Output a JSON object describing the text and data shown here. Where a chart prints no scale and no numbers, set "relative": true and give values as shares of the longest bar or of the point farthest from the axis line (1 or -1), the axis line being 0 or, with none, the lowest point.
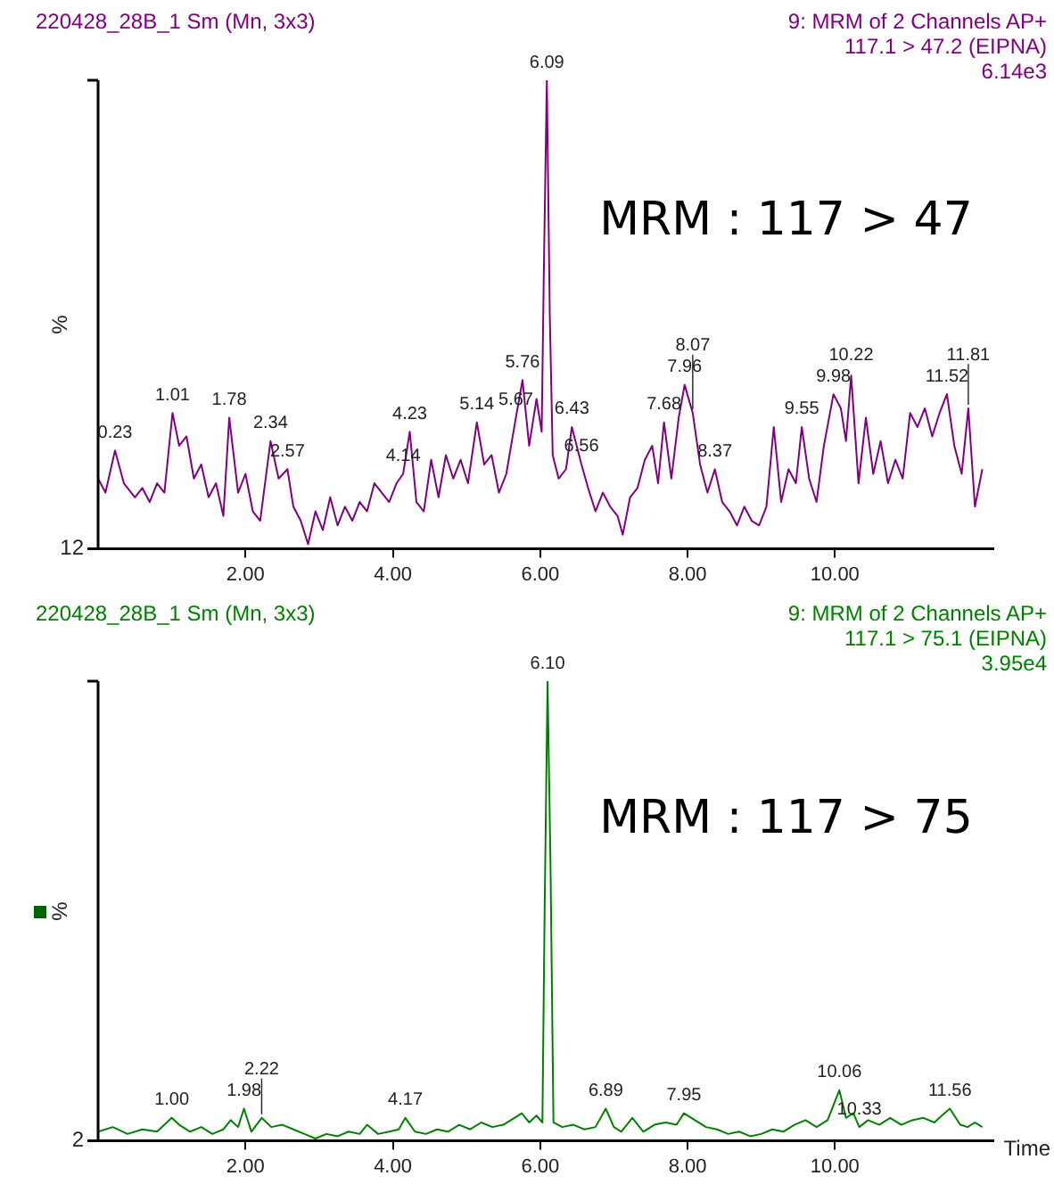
{
  "chart_data": [
    {
      "type": "line",
      "title": "220428_28B_1 Sm (Mn, 3x3)",
      "subtitle": "9: MRM of 2 Channels AP+\n117.1 > 47.2 (EIPNA)\n6.14e3",
      "ylabel": "%",
      "relative": true,
      "color": "#800080",
      "xlim": [
        0,
        12.15
      ],
      "xticks": [
        {
          "value": 2,
          "label": "2.00"
        },
        {
          "value": 4,
          "label": "4.00"
        },
        {
          "value": 6,
          "label": "6.00"
        },
        {
          "value": 8,
          "label": "8.00"
        },
        {
          "value": 10,
          "label": "10.00"
        }
      ],
      "x": [
        0,
        0.1,
        0.23,
        0.35,
        0.5,
        0.6,
        0.7,
        0.8,
        0.9,
        1.01,
        1.1,
        1.2,
        1.3,
        1.4,
        1.5,
        1.6,
        1.7,
        1.78,
        1.9,
        2.0,
        2.1,
        2.2,
        2.34,
        2.45,
        2.57,
        2.65,
        2.75,
        2.85,
        2.95,
        3.05,
        3.15,
        3.25,
        3.35,
        3.45,
        3.55,
        3.65,
        3.75,
        3.85,
        3.95,
        4.05,
        4.14,
        4.23,
        4.32,
        4.42,
        4.52,
        4.62,
        4.72,
        4.82,
        4.92,
        5.02,
        5.14,
        5.24,
        5.34,
        5.44,
        5.54,
        5.67,
        5.76,
        5.85,
        5.95,
        6.02,
        6.05,
        6.09,
        6.13,
        6.17,
        6.25,
        6.35,
        6.43,
        6.56,
        6.65,
        6.75,
        6.85,
        6.95,
        7.05,
        7.12,
        7.22,
        7.32,
        7.42,
        7.52,
        7.6,
        7.68,
        7.78,
        7.88,
        7.96,
        8.07,
        8.17,
        8.27,
        8.37,
        8.47,
        8.57,
        8.67,
        8.77,
        8.87,
        8.97,
        9.07,
        9.17,
        9.27,
        9.37,
        9.47,
        9.55,
        9.65,
        9.75,
        9.85,
        9.98,
        10.08,
        10.15,
        10.22,
        10.32,
        10.42,
        10.52,
        10.62,
        10.72,
        10.82,
        10.92,
        11.02,
        11.12,
        11.22,
        11.32,
        11.42,
        11.52,
        11.62,
        11.72,
        11.81,
        11.9,
        12.0
      ],
      "values": [
        0.15,
        0.12,
        0.21,
        0.14,
        0.11,
        0.13,
        0.1,
        0.14,
        0.12,
        0.29,
        0.22,
        0.24,
        0.15,
        0.18,
        0.11,
        0.14,
        0.07,
        0.28,
        0.12,
        0.16,
        0.08,
        0.06,
        0.23,
        0.15,
        0.17,
        0.09,
        0.06,
        0.01,
        0.08,
        0.04,
        0.11,
        0.05,
        0.09,
        0.06,
        0.1,
        0.08,
        0.14,
        0.12,
        0.1,
        0.14,
        0.16,
        0.25,
        0.1,
        0.08,
        0.19,
        0.11,
        0.2,
        0.15,
        0.19,
        0.14,
        0.27,
        0.18,
        0.2,
        0.12,
        0.16,
        0.28,
        0.36,
        0.22,
        0.32,
        0.25,
        0.6,
        1.0,
        0.5,
        0.2,
        0.15,
        0.17,
        0.26,
        0.18,
        0.13,
        0.08,
        0.12,
        0.09,
        0.07,
        0.03,
        0.11,
        0.13,
        0.19,
        0.22,
        0.14,
        0.27,
        0.15,
        0.28,
        0.35,
        0.29,
        0.18,
        0.12,
        0.17,
        0.1,
        0.08,
        0.05,
        0.09,
        0.06,
        0.05,
        0.09,
        0.26,
        0.1,
        0.17,
        0.14,
        0.26,
        0.15,
        0.1,
        0.22,
        0.33,
        0.3,
        0.23,
        0.37,
        0.14,
        0.28,
        0.16,
        0.23,
        0.14,
        0.19,
        0.15,
        0.29,
        0.26,
        0.3,
        0.24,
        0.29,
        0.33,
        0.22,
        0.16,
        0.3,
        0.09,
        0.17
      ],
      "annotations": [
        "MRM : 117 > 47",
        "12",
        {
          "text": "0.23",
          "x": 0.23,
          "y": 0.21
        },
        {
          "text": "1.01",
          "x": 1.01,
          "y": 0.29
        },
        {
          "text": "1.78",
          "x": 1.78,
          "y": 0.28
        },
        {
          "text": "2.34",
          "x": 2.34,
          "y": 0.23
        },
        {
          "text": "2.57",
          "x": 2.57,
          "y": 0.17
        },
        {
          "text": "4.14",
          "x": 4.14,
          "y": 0.16
        },
        {
          "text": "4.23",
          "x": 4.23,
          "y": 0.25
        },
        {
          "text": "5.14",
          "x": 5.14,
          "y": 0.27
        },
        {
          "text": "5.67",
          "x": 5.67,
          "y": 0.28
        },
        {
          "text": "5.76",
          "x": 5.76,
          "y": 0.36
        },
        {
          "text": "6.09",
          "x": 6.09,
          "y": 1.0
        },
        {
          "text": "6.43",
          "x": 6.43,
          "y": 0.26
        },
        {
          "text": "6.56",
          "x": 6.56,
          "y": 0.18
        },
        {
          "text": "7.68",
          "x": 7.68,
          "y": 0.27
        },
        {
          "text": "7.96",
          "x": 7.96,
          "y": 0.35
        },
        {
          "text": "8.07",
          "x": 8.07,
          "y": 0.29
        },
        {
          "text": "8.37",
          "x": 8.37,
          "y": 0.17
        },
        {
          "text": "9.55",
          "x": 9.55,
          "y": 0.26
        },
        {
          "text": "9.98",
          "x": 9.98,
          "y": 0.33
        },
        {
          "text": "10.22",
          "x": 10.22,
          "y": 0.37
        },
        {
          "text": "11.52",
          "x": 11.52,
          "y": 0.33
        },
        {
          "text": "11.81",
          "x": 11.81,
          "y": 0.3
        }
      ]
    },
    {
      "type": "line",
      "title": "220428_28B_1 Sm (Mn, 3x3)",
      "subtitle": "9: MRM of 2 Channels AP+\n117.1 > 75.1 (EIPNA)\n3.95e4",
      "ylabel": "%",
      "xlabel": "Time",
      "relative": true,
      "color": "#008000",
      "xlim": [
        0,
        12.15
      ],
      "xticks": [
        {
          "value": 2,
          "label": "2.00"
        },
        {
          "value": 4,
          "label": "4.00"
        },
        {
          "value": 6,
          "label": "6.00"
        },
        {
          "value": 8,
          "label": "8.00"
        },
        {
          "value": 10,
          "label": "10.00"
        }
      ],
      "x": [
        0,
        0.2,
        0.4,
        0.6,
        0.8,
        1.0,
        1.1,
        1.25,
        1.4,
        1.55,
        1.7,
        1.8,
        1.9,
        1.98,
        2.08,
        2.22,
        2.35,
        2.5,
        2.65,
        2.8,
        2.95,
        3.1,
        3.25,
        3.4,
        3.55,
        3.65,
        3.8,
        3.95,
        4.08,
        4.17,
        4.3,
        4.45,
        4.6,
        4.75,
        4.9,
        5.05,
        5.2,
        5.35,
        5.5,
        5.65,
        5.75,
        5.85,
        5.95,
        6.03,
        6.06,
        6.1,
        6.14,
        6.18,
        6.3,
        6.45,
        6.6,
        6.75,
        6.89,
        7.0,
        7.1,
        7.25,
        7.4,
        7.55,
        7.7,
        7.85,
        7.95,
        8.1,
        8.25,
        8.4,
        8.55,
        8.7,
        8.85,
        9.0,
        9.15,
        9.3,
        9.45,
        9.6,
        9.75,
        9.9,
        10.06,
        10.15,
        10.25,
        10.33,
        10.45,
        10.6,
        10.75,
        10.9,
        11.05,
        11.2,
        11.35,
        11.45,
        11.56,
        11.7,
        11.8,
        11.9,
        12.0
      ],
      "values": [
        0.02,
        0.03,
        0.015,
        0.025,
        0.02,
        0.05,
        0.035,
        0.02,
        0.03,
        0.015,
        0.025,
        0.045,
        0.03,
        0.07,
        0.02,
        0.05,
        0.03,
        0.035,
        0.025,
        0.015,
        0.005,
        0.015,
        0.01,
        0.02,
        0.015,
        0.035,
        0.015,
        0.02,
        0.025,
        0.05,
        0.02,
        0.015,
        0.025,
        0.02,
        0.035,
        0.025,
        0.04,
        0.03,
        0.035,
        0.05,
        0.06,
        0.04,
        0.055,
        0.04,
        0.5,
        1.0,
        0.6,
        0.04,
        0.03,
        0.035,
        0.025,
        0.03,
        0.07,
        0.03,
        0.02,
        0.05,
        0.02,
        0.035,
        0.04,
        0.035,
        0.06,
        0.045,
        0.03,
        0.025,
        0.015,
        0.02,
        0.01,
        0.015,
        0.025,
        0.02,
        0.035,
        0.045,
        0.03,
        0.045,
        0.11,
        0.05,
        0.06,
        0.03,
        0.045,
        0.035,
        0.05,
        0.035,
        0.045,
        0.05,
        0.04,
        0.055,
        0.07,
        0.035,
        0.03,
        0.04,
        0.03
      ],
      "annotations": [
        "MRM : 117 > 75",
        "2",
        {
          "text": "1.00",
          "x": 1.0,
          "y": 0.05
        },
        {
          "text": "1.98",
          "x": 1.98,
          "y": 0.07
        },
        {
          "text": "2.22",
          "x": 2.22,
          "y": 0.05
        },
        {
          "text": "4.17",
          "x": 4.17,
          "y": 0.05
        },
        {
          "text": "6.10",
          "x": 6.1,
          "y": 1.0
        },
        {
          "text": "6.89",
          "x": 6.89,
          "y": 0.07
        },
        {
          "text": "7.95",
          "x": 7.95,
          "y": 0.06
        },
        {
          "text": "10.06",
          "x": 10.06,
          "y": 0.11
        },
        {
          "text": "10.33",
          "x": 10.33,
          "y": 0.03
        },
        {
          "text": "11.56",
          "x": 11.56,
          "y": 0.07
        }
      ]
    }
  ]
}
